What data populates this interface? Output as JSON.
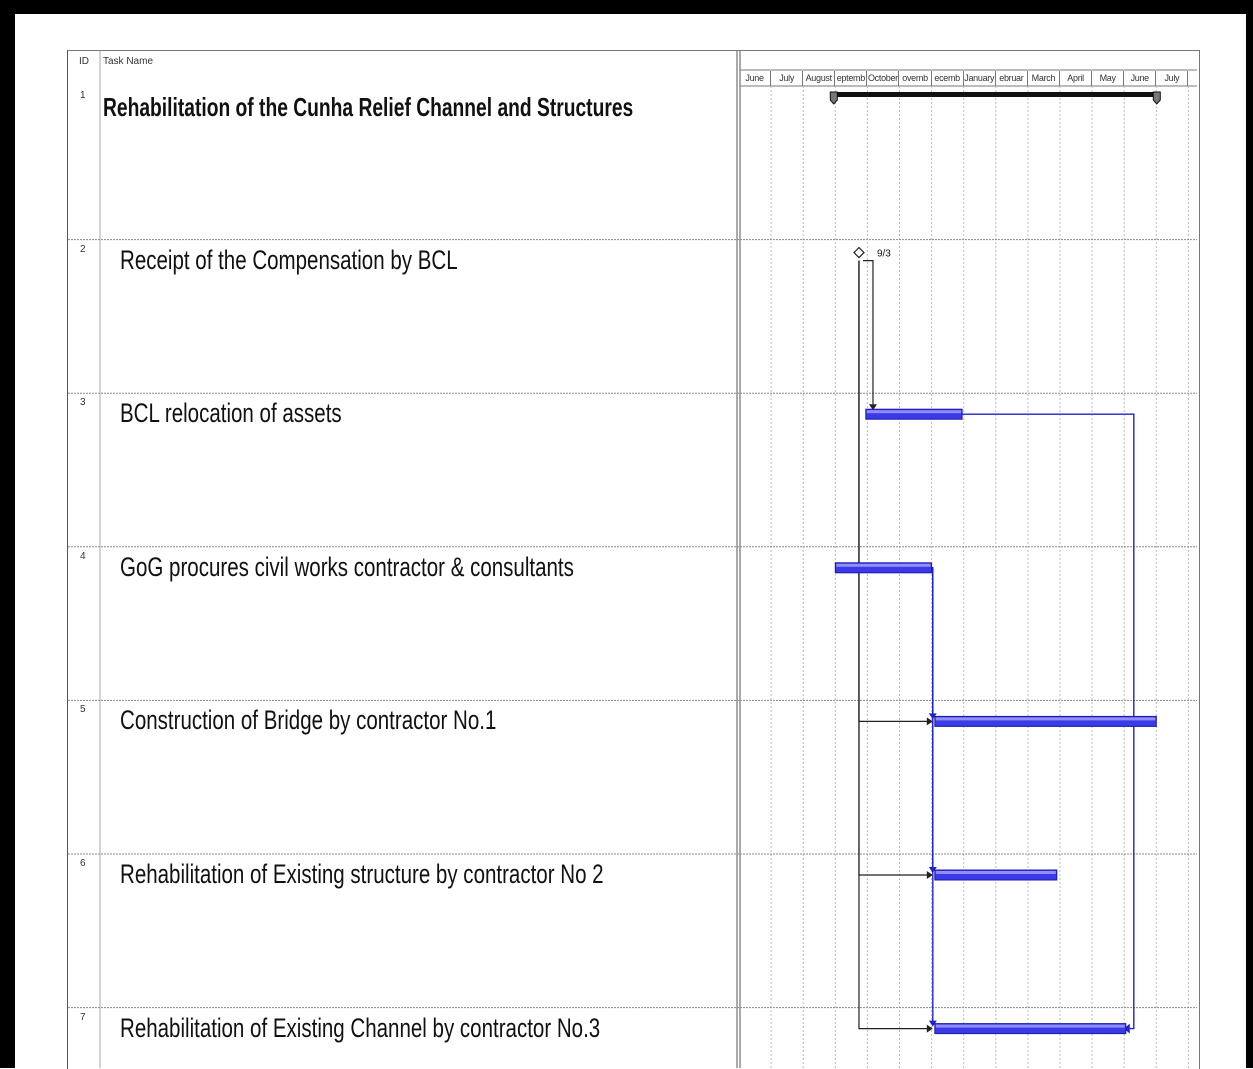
{
  "header": {
    "id_label": "ID",
    "task_name_label": "Task Name"
  },
  "chart_data": {
    "type": "gantt",
    "months": [
      "June",
      "July",
      "August",
      "eptemb",
      "October",
      "ovemb",
      "ecemb",
      "January",
      "ebruar",
      "March",
      "April",
      "May",
      "June",
      "July"
    ],
    "tasks": [
      {
        "id": "1",
        "name": "Rehabilitation of the Cunha Relief Channel and Structures",
        "summary": true,
        "start": 3.0,
        "end": 13.0
      },
      {
        "id": "2",
        "name": "Receipt of the Compensation by BCL",
        "milestone": true,
        "at": 3.8,
        "label": "9/3"
      },
      {
        "id": "3",
        "name": "BCL relocation of assets",
        "start": 3.95,
        "end": 6.95
      },
      {
        "id": "4",
        "name": "GoG procures civil works contractor & consultants",
        "start": 3.0,
        "end": 6.0
      },
      {
        "id": "5",
        "name": "Construction of Bridge by contractor No.1",
        "start": 6.1,
        "end": 13.0
      },
      {
        "id": "6",
        "name": "Rehabilitation of Existing structure by contractor No 2",
        "start": 6.1,
        "end": 9.9
      },
      {
        "id": "7",
        "name": "Rehabilitation of Existing Channel by contractor No.3",
        "start": 6.1,
        "end": 12.05
      }
    ],
    "links": [
      {
        "from": "2",
        "to": "3"
      },
      {
        "from": "2",
        "to": "5"
      },
      {
        "from": "2",
        "to": "6"
      },
      {
        "from": "2",
        "to": "7"
      },
      {
        "from": "4",
        "to": "5"
      },
      {
        "from": "4",
        "to": "6"
      },
      {
        "from": "4",
        "to": "7"
      },
      {
        "from": "3",
        "to": "7"
      }
    ]
  }
}
